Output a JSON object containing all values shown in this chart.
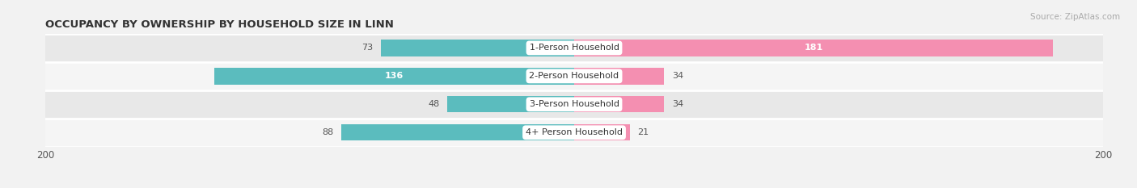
{
  "title": "OCCUPANCY BY OWNERSHIP BY HOUSEHOLD SIZE IN LINN",
  "source": "Source: ZipAtlas.com",
  "categories": [
    "1-Person Household",
    "2-Person Household",
    "3-Person Household",
    "4+ Person Household"
  ],
  "owner_values": [
    73,
    136,
    48,
    88
  ],
  "renter_values": [
    181,
    34,
    34,
    21
  ],
  "owner_color": "#5bbcbe",
  "renter_color": "#f48fb1",
  "axis_max": 200,
  "background_color": "#f2f2f2",
  "row_bg_even": "#e8e8e8",
  "row_bg_odd": "#f5f5f5",
  "title_fontsize": 9.5,
  "bar_height": 0.58,
  "figsize": [
    14.06,
    2.33
  ]
}
